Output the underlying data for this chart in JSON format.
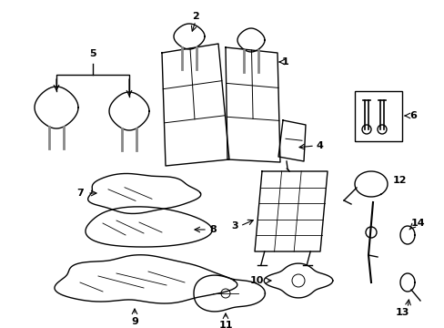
{
  "background_color": "#ffffff",
  "line_color": "#000000",
  "line_width": 1.0,
  "figsize": [
    4.89,
    3.6
  ],
  "dpi": 100,
  "xlim": [
    0,
    489
  ],
  "ylim": [
    0,
    360
  ]
}
